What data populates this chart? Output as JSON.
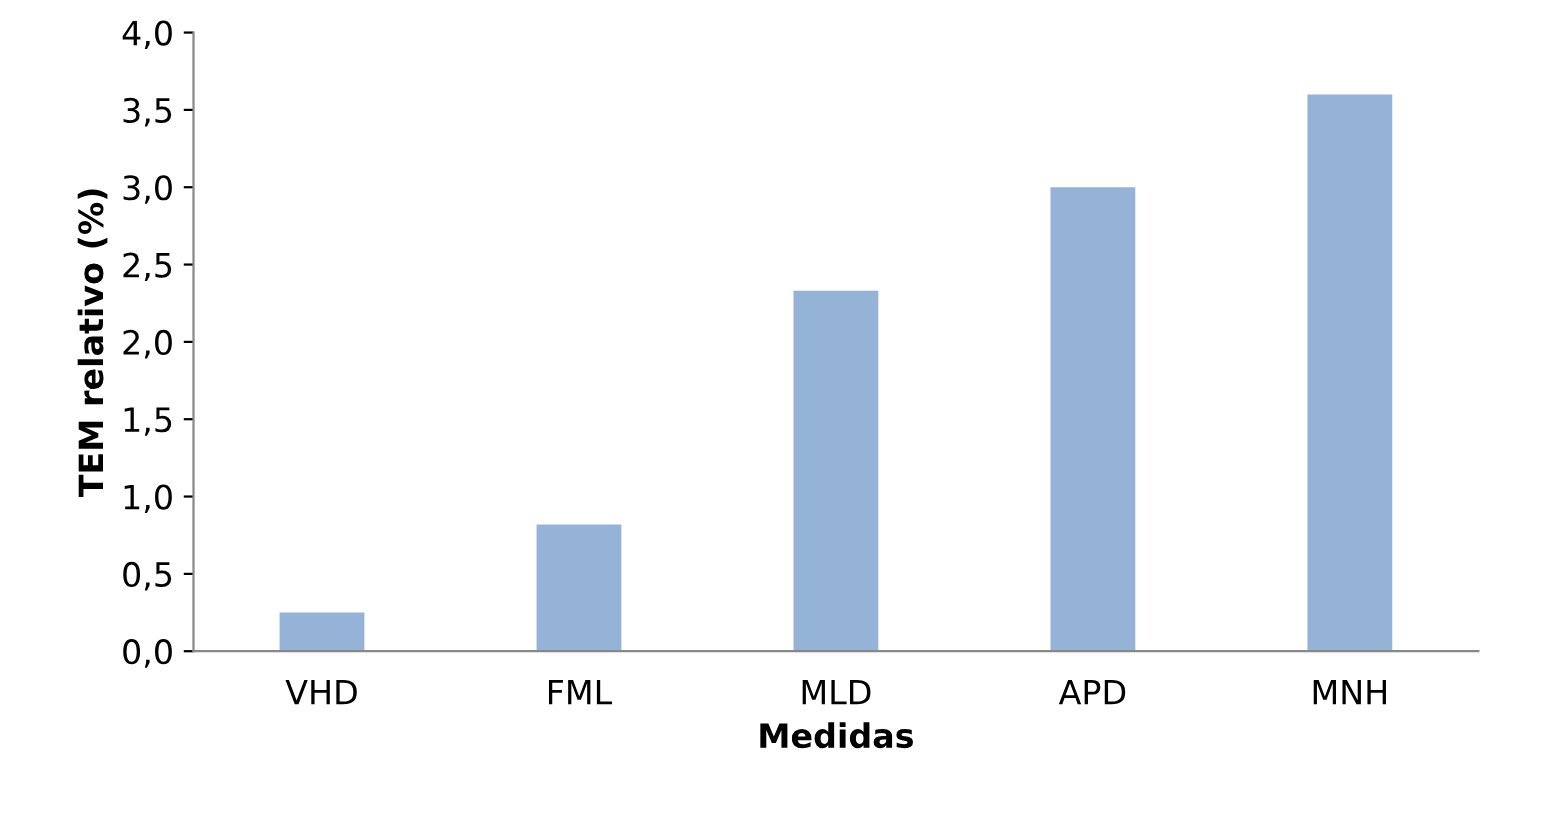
{
  "chart_data": {
    "type": "bar",
    "xlabel": "Medidas",
    "ylabel": "TEM relativo (%)",
    "categories": [
      "VHD",
      "FML",
      "MLD",
      "APD",
      "MNH"
    ],
    "values": [
      0.25,
      0.82,
      2.33,
      3.0,
      3.6
    ],
    "color": "#95b3d7",
    "ylim": [
      0,
      4
    ],
    "yticks": [
      {
        "value": 0,
        "label": "0,0"
      },
      {
        "value": 0.5,
        "label": "0,5"
      },
      {
        "value": 1,
        "label": "1,0"
      },
      {
        "value": 1.5,
        "label": "1,5"
      },
      {
        "value": 2,
        "label": "2,0"
      },
      {
        "value": 2.5,
        "label": "2,5"
      },
      {
        "value": 3,
        "label": "3,0"
      },
      {
        "value": 3.5,
        "label": "3,5"
      },
      {
        "value": 4,
        "label": "4,0"
      }
    ],
    "grid": false
  }
}
